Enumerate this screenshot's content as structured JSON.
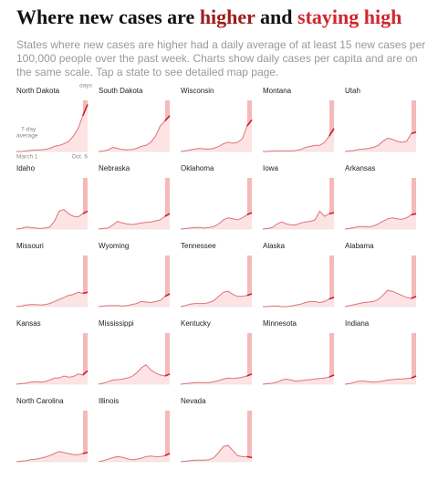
{
  "chart_data": {
    "type": "line",
    "title": [
      "Where new cases are ",
      "higher",
      " and ",
      "staying high"
    ],
    "subtitle": "States where new cases are higher had a daily average of at least 15 new cases per 100,000 people over the past week. Charts show daily cases per capita and are on the same scale. Tap a state to see detailed map page.",
    "annotations": {
      "last_14_line1": "Last 14",
      "last_14_line2": "days",
      "average_line1": "7-day",
      "average_line2": "average",
      "start": "March 1",
      "end": "Oct. 6"
    },
    "color": "#c8202c",
    "area_color": "#fde3e3",
    "highlight_color": "#f6b9b9",
    "ylim": [
      0,
      100
    ],
    "series": [
      {
        "name": "North Dakota",
        "values": [
          0,
          0,
          1,
          2,
          3,
          3,
          4,
          6,
          10,
          12,
          15,
          20,
          30,
          45,
          70,
          92
        ]
      },
      {
        "name": "South Dakota",
        "values": [
          0,
          1,
          3,
          8,
          6,
          4,
          3,
          4,
          6,
          10,
          12,
          18,
          30,
          50,
          60,
          70
        ]
      },
      {
        "name": "Wisconsin",
        "values": [
          0,
          1,
          3,
          5,
          6,
          5,
          5,
          6,
          10,
          15,
          18,
          16,
          18,
          25,
          50,
          62
        ]
      },
      {
        "name": "Montana",
        "values": [
          0,
          0,
          1,
          1,
          1,
          1,
          1,
          2,
          4,
          8,
          10,
          12,
          12,
          18,
          30,
          45
        ]
      },
      {
        "name": "Utah",
        "values": [
          0,
          1,
          2,
          4,
          5,
          6,
          8,
          12,
          20,
          26,
          24,
          20,
          18,
          20,
          35,
          38
        ]
      },
      {
        "name": "Idaho",
        "values": [
          0,
          1,
          4,
          3,
          2,
          1,
          2,
          4,
          15,
          35,
          38,
          30,
          25,
          24,
          30,
          35
        ]
      },
      {
        "name": "Nebraska",
        "values": [
          0,
          1,
          2,
          8,
          15,
          12,
          10,
          9,
          10,
          12,
          13,
          14,
          16,
          18,
          25,
          30
        ]
      },
      {
        "name": "Oklahoma",
        "values": [
          0,
          1,
          2,
          3,
          3,
          2,
          3,
          5,
          10,
          18,
          22,
          20,
          18,
          22,
          28,
          32
        ]
      },
      {
        "name": "Iowa",
        "values": [
          0,
          1,
          3,
          10,
          14,
          10,
          8,
          8,
          12,
          14,
          15,
          18,
          35,
          25,
          30,
          32
        ]
      },
      {
        "name": "Arkansas",
        "values": [
          0,
          1,
          3,
          5,
          5,
          4,
          6,
          10,
          15,
          20,
          22,
          20,
          19,
          22,
          28,
          30
        ]
      },
      {
        "name": "Missouri",
        "values": [
          0,
          1,
          3,
          4,
          4,
          3,
          4,
          6,
          10,
          14,
          18,
          22,
          24,
          28,
          26,
          28
        ]
      },
      {
        "name": "Wyoming",
        "values": [
          0,
          1,
          2,
          2,
          2,
          1,
          2,
          4,
          6,
          10,
          9,
          8,
          10,
          12,
          20,
          25
        ]
      },
      {
        "name": "Tennessee",
        "values": [
          0,
          2,
          5,
          6,
          6,
          6,
          8,
          12,
          20,
          28,
          30,
          24,
          20,
          20,
          22,
          25
        ]
      },
      {
        "name": "Alaska",
        "values": [
          0,
          0,
          1,
          1,
          0,
          0,
          1,
          3,
          5,
          8,
          10,
          10,
          8,
          10,
          15,
          18
        ]
      },
      {
        "name": "Alabama",
        "values": [
          0,
          2,
          4,
          6,
          8,
          9,
          10,
          14,
          22,
          32,
          30,
          26,
          22,
          18,
          16,
          20
        ]
      },
      {
        "name": "Kansas",
        "values": [
          0,
          1,
          2,
          4,
          5,
          4,
          5,
          8,
          12,
          12,
          16,
          14,
          15,
          20,
          18,
          26
        ]
      },
      {
        "name": "Mississippi",
        "values": [
          0,
          2,
          5,
          8,
          9,
          10,
          12,
          15,
          22,
          32,
          38,
          28,
          22,
          18,
          16,
          20
        ]
      },
      {
        "name": "Kentucky",
        "values": [
          0,
          1,
          2,
          3,
          3,
          3,
          3,
          5,
          7,
          10,
          12,
          11,
          12,
          14,
          16,
          20
        ]
      },
      {
        "name": "Minnesota",
        "values": [
          0,
          1,
          2,
          4,
          8,
          10,
          8,
          6,
          7,
          8,
          9,
          10,
          11,
          12,
          14,
          18
        ]
      },
      {
        "name": "Indiana",
        "values": [
          0,
          1,
          4,
          6,
          6,
          5,
          4,
          5,
          6,
          8,
          9,
          10,
          10,
          11,
          12,
          16
        ]
      },
      {
        "name": "North Carolina",
        "values": [
          0,
          1,
          2,
          4,
          5,
          7,
          9,
          12,
          16,
          20,
          18,
          16,
          14,
          14,
          16,
          18
        ]
      },
      {
        "name": "Illinois",
        "values": [
          0,
          2,
          5,
          8,
          10,
          9,
          6,
          4,
          5,
          7,
          10,
          11,
          10,
          10,
          12,
          16
        ]
      },
      {
        "name": "Nevada",
        "values": [
          0,
          1,
          2,
          3,
          3,
          3,
          4,
          8,
          18,
          30,
          32,
          22,
          12,
          10,
          10,
          8
        ]
      }
    ]
  }
}
